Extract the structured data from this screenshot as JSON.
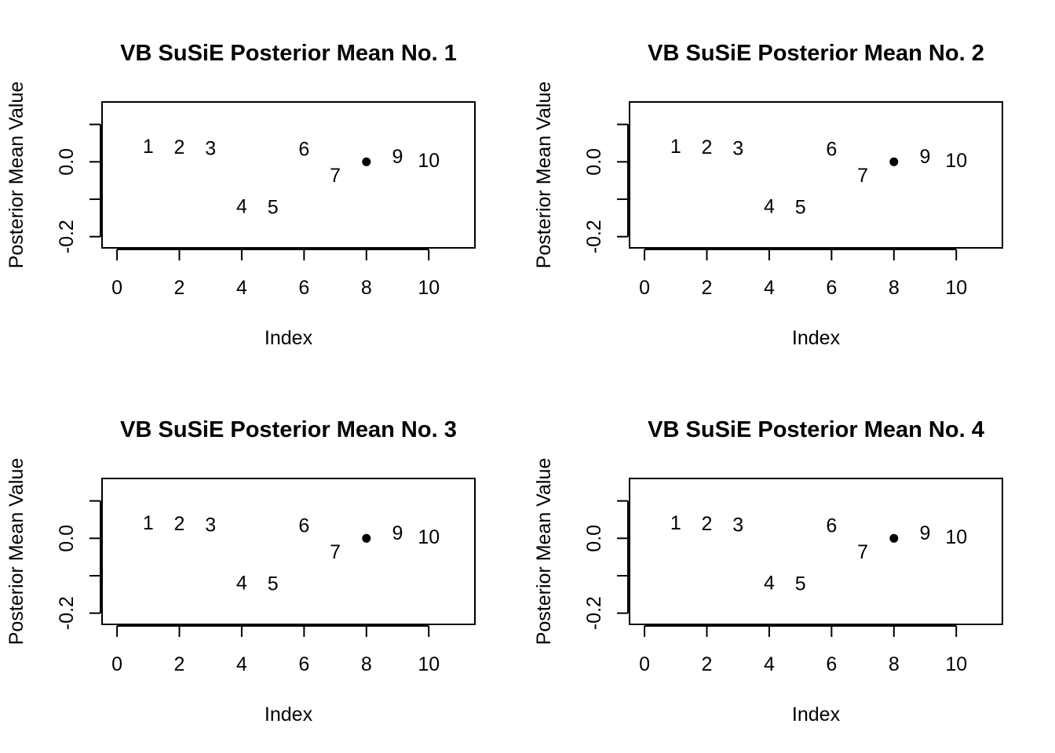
{
  "chart_data": [
    {
      "type": "scatter",
      "title": "VB SuSiE Posterior Mean No. 1",
      "xlabel": "Index",
      "ylabel": "Posterior Mean Value",
      "xlim": [
        -0.48,
        11.48
      ],
      "ylim": [
        -0.23,
        0.16
      ],
      "xticks": [
        0,
        2,
        4,
        6,
        8,
        10
      ],
      "yticks": [
        -0.2,
        0.0
      ],
      "ytick_labels": [
        "-0.2",
        "0.0"
      ],
      "yticks_unlabeled": [
        -0.1,
        0.1
      ],
      "points": [
        {
          "x": 1,
          "y": 0.04,
          "label": "1"
        },
        {
          "x": 2,
          "y": 0.038,
          "label": "2"
        },
        {
          "x": 3,
          "y": 0.035,
          "label": "3"
        },
        {
          "x": 4,
          "y": -0.12,
          "label": "4"
        },
        {
          "x": 5,
          "y": -0.122,
          "label": "5"
        },
        {
          "x": 6,
          "y": 0.033,
          "label": "6"
        },
        {
          "x": 7,
          "y": -0.037,
          "label": "7"
        },
        {
          "x": 8,
          "y": 0.0,
          "label": "",
          "marker": "dot"
        },
        {
          "x": 9,
          "y": 0.013,
          "label": "9"
        },
        {
          "x": 10,
          "y": 0.003,
          "label": "10"
        }
      ],
      "grid": false
    },
    {
      "type": "scatter",
      "title": "VB SuSiE Posterior Mean No. 2",
      "xlabel": "Index",
      "ylabel": "Posterior Mean Value",
      "xlim": [
        -0.48,
        11.48
      ],
      "ylim": [
        -0.23,
        0.16
      ],
      "xticks": [
        0,
        2,
        4,
        6,
        8,
        10
      ],
      "yticks": [
        -0.2,
        0.0
      ],
      "ytick_labels": [
        "-0.2",
        "0.0"
      ],
      "yticks_unlabeled": [
        -0.1,
        0.1
      ],
      "points": [
        {
          "x": 1,
          "y": 0.04,
          "label": "1"
        },
        {
          "x": 2,
          "y": 0.038,
          "label": "2"
        },
        {
          "x": 3,
          "y": 0.035,
          "label": "3"
        },
        {
          "x": 4,
          "y": -0.12,
          "label": "4"
        },
        {
          "x": 5,
          "y": -0.122,
          "label": "5"
        },
        {
          "x": 6,
          "y": 0.033,
          "label": "6"
        },
        {
          "x": 7,
          "y": -0.037,
          "label": "7"
        },
        {
          "x": 8,
          "y": 0.0,
          "label": "",
          "marker": "dot"
        },
        {
          "x": 9,
          "y": 0.013,
          "label": "9"
        },
        {
          "x": 10,
          "y": 0.003,
          "label": "10"
        }
      ],
      "grid": false
    },
    {
      "type": "scatter",
      "title": "VB SuSiE Posterior Mean No. 3",
      "xlabel": "Index",
      "ylabel": "Posterior Mean Value",
      "xlim": [
        -0.48,
        11.48
      ],
      "ylim": [
        -0.23,
        0.16
      ],
      "xticks": [
        0,
        2,
        4,
        6,
        8,
        10
      ],
      "yticks": [
        -0.2,
        0.0
      ],
      "ytick_labels": [
        "-0.2",
        "0.0"
      ],
      "yticks_unlabeled": [
        -0.1,
        0.1
      ],
      "points": [
        {
          "x": 1,
          "y": 0.04,
          "label": "1"
        },
        {
          "x": 2,
          "y": 0.038,
          "label": "2"
        },
        {
          "x": 3,
          "y": 0.035,
          "label": "3"
        },
        {
          "x": 4,
          "y": -0.12,
          "label": "4"
        },
        {
          "x": 5,
          "y": -0.122,
          "label": "5"
        },
        {
          "x": 6,
          "y": 0.033,
          "label": "6"
        },
        {
          "x": 7,
          "y": -0.037,
          "label": "7"
        },
        {
          "x": 8,
          "y": 0.0,
          "label": "",
          "marker": "dot"
        },
        {
          "x": 9,
          "y": 0.013,
          "label": "9"
        },
        {
          "x": 10,
          "y": 0.003,
          "label": "10"
        }
      ],
      "grid": false
    },
    {
      "type": "scatter",
      "title": "VB SuSiE Posterior Mean No. 4",
      "xlabel": "Index",
      "ylabel": "Posterior Mean Value",
      "xlim": [
        -0.48,
        11.48
      ],
      "ylim": [
        -0.23,
        0.16
      ],
      "xticks": [
        0,
        2,
        4,
        6,
        8,
        10
      ],
      "yticks": [
        -0.2,
        0.0
      ],
      "ytick_labels": [
        "-0.2",
        "0.0"
      ],
      "yticks_unlabeled": [
        -0.1,
        0.1
      ],
      "points": [
        {
          "x": 1,
          "y": 0.04,
          "label": "1"
        },
        {
          "x": 2,
          "y": 0.038,
          "label": "2"
        },
        {
          "x": 3,
          "y": 0.035,
          "label": "3"
        },
        {
          "x": 4,
          "y": -0.12,
          "label": "4"
        },
        {
          "x": 5,
          "y": -0.122,
          "label": "5"
        },
        {
          "x": 6,
          "y": 0.033,
          "label": "6"
        },
        {
          "x": 7,
          "y": -0.037,
          "label": "7"
        },
        {
          "x": 8,
          "y": 0.0,
          "label": "",
          "marker": "dot"
        },
        {
          "x": 9,
          "y": 0.013,
          "label": "9"
        },
        {
          "x": 10,
          "y": 0.003,
          "label": "10"
        }
      ],
      "grid": false
    }
  ],
  "colors": {
    "ink": "#000000",
    "background": "#ffffff"
  }
}
